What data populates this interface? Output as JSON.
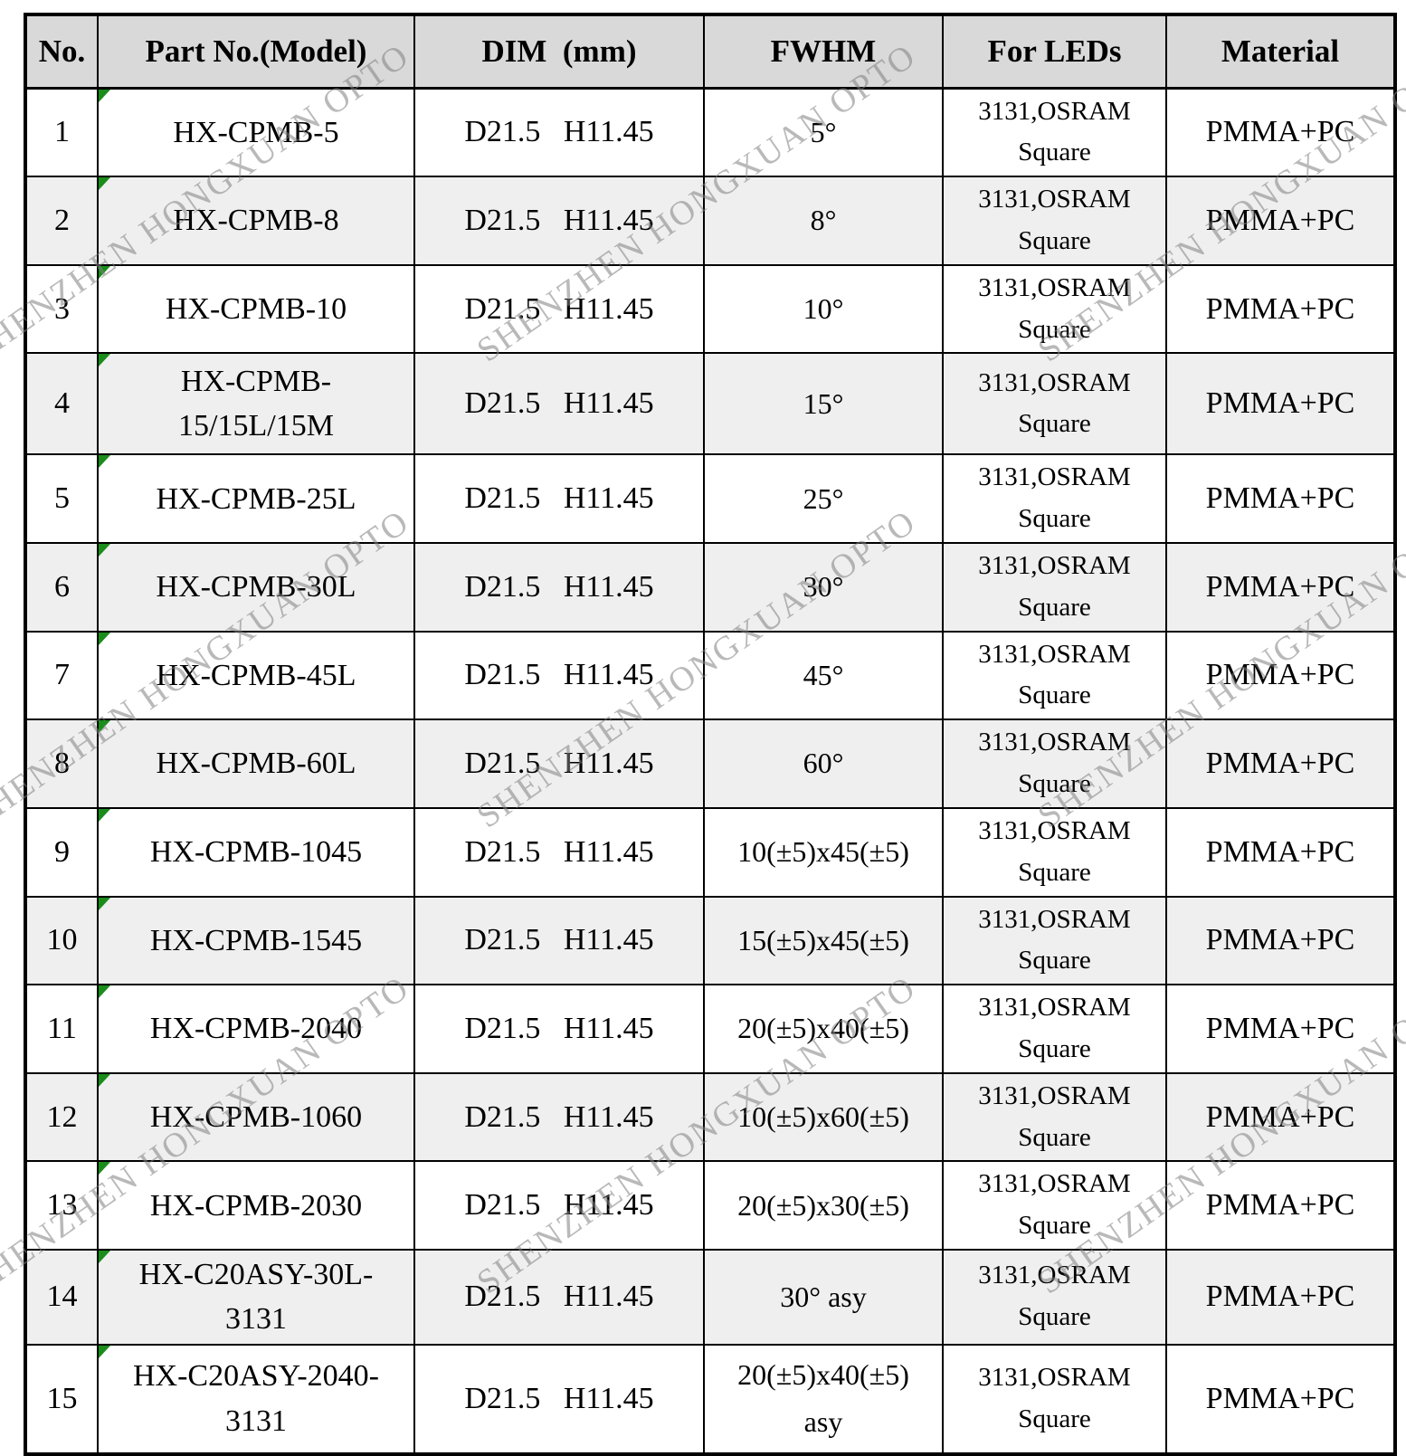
{
  "watermark": {
    "text": "SHENZHEN HONGXUAN OPTO"
  },
  "colors": {
    "header_bg": "#d9d9d9",
    "row_alt_bg": "#efefef",
    "border": "#000000",
    "comment_marker_green": "#1a8c1a",
    "watermark_gray": "#9a9a9a"
  },
  "table": {
    "columns": [
      "No.",
      "Part No.(Model)",
      "DIM  (mm)",
      "FWHM",
      "For LEDs",
      "Material"
    ],
    "rows": [
      {
        "no": "1",
        "part": "HX-CPMB-5",
        "dim": "D21.5   H11.45",
        "fwhm": "5°",
        "leds": "3131,OSRAM\nSquare",
        "material": "PMMA+PC"
      },
      {
        "no": "2",
        "part": "HX-CPMB-8",
        "dim": "D21.5   H11.45",
        "fwhm": "8°",
        "leds": "3131,OSRAM\nSquare",
        "material": "PMMA+PC"
      },
      {
        "no": "3",
        "part": "HX-CPMB-10",
        "dim": "D21.5   H11.45",
        "fwhm": "10°",
        "leds": "3131,OSRAM\nSquare",
        "material": "PMMA+PC"
      },
      {
        "no": "4",
        "part": "HX-CPMB-\n15/15L/15M",
        "dim": "D21.5   H11.45",
        "fwhm": "15°",
        "leds": "3131,OSRAM\nSquare",
        "material": "PMMA+PC"
      },
      {
        "no": "5",
        "part": "HX-CPMB-25L",
        "dim": "D21.5   H11.45",
        "fwhm": "25°",
        "leds": "3131,OSRAM\nSquare",
        "material": "PMMA+PC"
      },
      {
        "no": "6",
        "part": "HX-CPMB-30L",
        "dim": "D21.5   H11.45",
        "fwhm": "30°",
        "leds": "3131,OSRAM\nSquare",
        "material": "PMMA+PC"
      },
      {
        "no": "7",
        "part": "HX-CPMB-45L",
        "dim": "D21.5   H11.45",
        "fwhm": "45°",
        "leds": "3131,OSRAM\nSquare",
        "material": "PMMA+PC"
      },
      {
        "no": "8",
        "part": "HX-CPMB-60L",
        "dim": "D21.5   H11.45",
        "fwhm": "60°",
        "leds": "3131,OSRAM\nSquare",
        "material": "PMMA+PC"
      },
      {
        "no": "9",
        "part": "HX-CPMB-1045",
        "dim": "D21.5   H11.45",
        "fwhm": "10(±5)x45(±5)",
        "leds": "3131,OSRAM\nSquare",
        "material": "PMMA+PC"
      },
      {
        "no": "10",
        "part": "HX-CPMB-1545",
        "dim": "D21.5   H11.45",
        "fwhm": "15(±5)x45(±5)",
        "leds": "3131,OSRAM\nSquare",
        "material": "PMMA+PC"
      },
      {
        "no": "11",
        "part": "HX-CPMB-2040",
        "dim": "D21.5   H11.45",
        "fwhm": "20(±5)x40(±5)",
        "leds": "3131,OSRAM\nSquare",
        "material": "PMMA+PC"
      },
      {
        "no": "12",
        "part": "HX-CPMB-1060",
        "dim": "D21.5   H11.45",
        "fwhm": "10(±5)x60(±5)",
        "leds": "3131,OSRAM\nSquare",
        "material": "PMMA+PC"
      },
      {
        "no": "13",
        "part": "HX-CPMB-2030",
        "dim": "D21.5   H11.45",
        "fwhm": "20(±5)x30(±5)",
        "leds": "3131,OSRAM\nSquare",
        "material": "PMMA+PC"
      },
      {
        "no": "14",
        "part": "HX-C20ASY-30L-\n3131",
        "dim": "D21.5   H11.45",
        "fwhm": "30° asy",
        "leds": "3131,OSRAM\nSquare",
        "material": "PMMA+PC"
      },
      {
        "no": "15",
        "part": "HX-C20ASY-2040-\n3131",
        "dim": "D21.5   H11.45",
        "fwhm": "20(±5)x40(±5)\nasy",
        "leds": "3131,OSRAM\nSquare",
        "material": "PMMA+PC"
      }
    ]
  },
  "layout_hints": {
    "shaded_row_numbers": [
      2,
      4,
      6,
      8,
      10,
      12,
      14
    ],
    "tall_row_numbers": [
      4,
      15
    ]
  }
}
